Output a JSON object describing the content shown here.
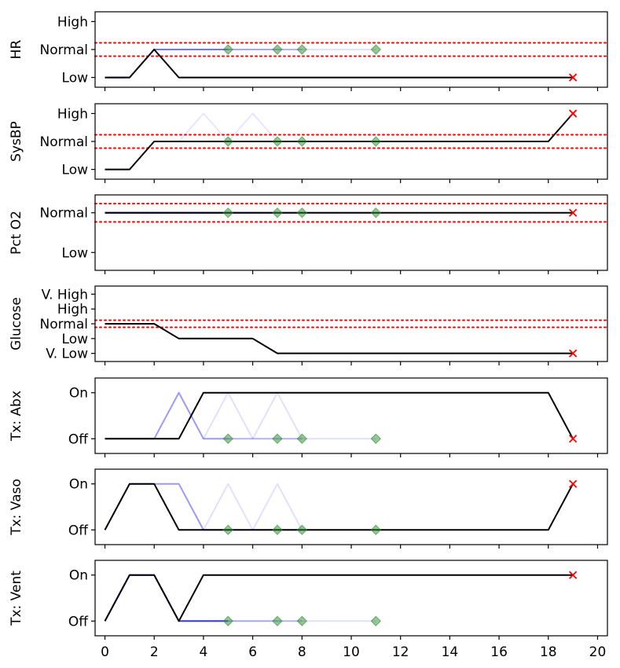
{
  "chart_data": {
    "type": "line",
    "x_ticks": [
      "0",
      "2",
      "4",
      "6",
      "8",
      "10",
      "12",
      "14",
      "16",
      "18",
      "20"
    ],
    "xlim": [
      -0.4,
      20.4
    ],
    "colors": {
      "observed": "#000000",
      "counterfactual": "#0000ff",
      "marker": "#2e8b2e",
      "threshold": "#ff0000",
      "terminal": "#ff0000"
    },
    "panels": [
      {
        "ylabel": "HR",
        "levels": [
          "Low",
          "Normal",
          "High"
        ],
        "ylim": [
          -0.35,
          2.35
        ],
        "thresholds": [
          0.76,
          1.24
        ],
        "observed": {
          "x": [
            0,
            1,
            2,
            3,
            4,
            5,
            6,
            7,
            8,
            9,
            10,
            11,
            12,
            13,
            14,
            15,
            16,
            17,
            18,
            19
          ],
          "y": [
            0,
            0,
            1,
            0,
            0,
            0,
            0,
            0,
            0,
            0,
            0,
            0,
            0,
            0,
            0,
            0,
            0,
            0,
            0,
            0
          ]
        },
        "counterfactuals": [
          {
            "x": [
              0,
              1,
              2,
              3,
              4,
              5
            ],
            "y": [
              0,
              0,
              1,
              1,
              1,
              1
            ],
            "alpha": 0.55
          },
          {
            "x": [
              5,
              6,
              7
            ],
            "y": [
              1,
              1,
              1
            ],
            "alpha": 0.35
          },
          {
            "x": [
              7,
              8
            ],
            "y": [
              1,
              1
            ],
            "alpha": 0.3
          },
          {
            "x": [
              8,
              9,
              10,
              11
            ],
            "y": [
              1,
              1,
              1,
              1
            ],
            "alpha": 0.12
          }
        ],
        "markers": [
          {
            "x": 5,
            "y": 1
          },
          {
            "x": 7,
            "y": 1
          },
          {
            "x": 8,
            "y": 1
          },
          {
            "x": 11,
            "y": 1
          }
        ],
        "end": {
          "x": 19,
          "y": 0
        }
      },
      {
        "ylabel": "SysBP",
        "levels": [
          "Low",
          "Normal",
          "High"
        ],
        "ylim": [
          -0.35,
          2.35
        ],
        "thresholds": [
          0.76,
          1.24
        ],
        "observed": {
          "x": [
            0,
            1,
            2,
            3,
            4,
            5,
            6,
            7,
            8,
            9,
            10,
            11,
            12,
            13,
            14,
            15,
            16,
            17,
            18,
            19
          ],
          "y": [
            0,
            0,
            1,
            1,
            1,
            1,
            1,
            1,
            1,
            1,
            1,
            1,
            1,
            1,
            1,
            1,
            1,
            1,
            1,
            2
          ]
        },
        "counterfactuals": [
          {
            "x": [
              0,
              1,
              2,
              3,
              4,
              5
            ],
            "y": [
              0,
              0,
              1,
              1,
              2,
              1
            ],
            "alpha": 0.1
          },
          {
            "x": [
              5,
              6,
              7
            ],
            "y": [
              1,
              2,
              1
            ],
            "alpha": 0.1
          },
          {
            "x": [
              7,
              8
            ],
            "y": [
              1,
              1
            ],
            "alpha": 0.1
          },
          {
            "x": [
              8,
              9,
              10,
              11
            ],
            "y": [
              1,
              1,
              1,
              1
            ],
            "alpha": 0.1
          }
        ],
        "markers": [
          {
            "x": 5,
            "y": 1
          },
          {
            "x": 7,
            "y": 1
          },
          {
            "x": 8,
            "y": 1
          },
          {
            "x": 11,
            "y": 1
          }
        ],
        "end": {
          "x": 19,
          "y": 2
        }
      },
      {
        "ylabel": "Pct O2",
        "levels": [
          "Low",
          "Normal"
        ],
        "ylim": [
          -0.45,
          1.45
        ],
        "thresholds": [
          0.77,
          1.23
        ],
        "observed": {
          "x": [
            0,
            19
          ],
          "y": [
            1,
            1
          ]
        },
        "counterfactuals": [
          {
            "x": [
              0,
              5
            ],
            "y": [
              1,
              1
            ],
            "alpha": 0.9
          },
          {
            "x": [
              5,
              7
            ],
            "y": [
              1,
              1
            ],
            "alpha": 0.7
          },
          {
            "x": [
              7,
              8
            ],
            "y": [
              1,
              1
            ],
            "alpha": 0.5
          },
          {
            "x": [
              8,
              11
            ],
            "y": [
              1,
              1
            ],
            "alpha": 0.3
          }
        ],
        "markers": [
          {
            "x": 5,
            "y": 1
          },
          {
            "x": 7,
            "y": 1
          },
          {
            "x": 8,
            "y": 1
          },
          {
            "x": 11,
            "y": 1
          }
        ],
        "end": {
          "x": 19,
          "y": 1
        }
      },
      {
        "ylabel": "Glucose",
        "levels": [
          "V. Low",
          "Low",
          "Normal",
          "High",
          "V. High"
        ],
        "ylim": [
          -0.55,
          4.55
        ],
        "thresholds": [
          1.76,
          2.24
        ],
        "observed": {
          "x": [
            0,
            1,
            2,
            3,
            4,
            5,
            6,
            7,
            8,
            9,
            10,
            11,
            12,
            13,
            14,
            15,
            16,
            17,
            18,
            19
          ],
          "y": [
            2,
            2,
            2,
            1,
            1,
            1,
            1,
            0,
            0,
            0,
            0,
            0,
            0,
            0,
            0,
            0,
            0,
            0,
            0,
            0
          ]
        },
        "counterfactuals": [],
        "markers": [],
        "end": {
          "x": 19,
          "y": 0
        }
      },
      {
        "ylabel": "Tx: Abx",
        "levels": [
          "Off",
          "On"
        ],
        "ylim": [
          -0.32,
          1.32
        ],
        "thresholds": [],
        "observed": {
          "x": [
            0,
            1,
            2,
            3,
            4,
            5,
            6,
            7,
            8,
            9,
            10,
            11,
            12,
            13,
            14,
            15,
            16,
            17,
            18,
            19
          ],
          "y": [
            0,
            0,
            0,
            0,
            1,
            1,
            1,
            1,
            1,
            1,
            1,
            1,
            1,
            1,
            1,
            1,
            1,
            1,
            1,
            0
          ]
        },
        "counterfactuals": [
          {
            "x": [
              0,
              1,
              2,
              3,
              4,
              5
            ],
            "y": [
              0,
              0,
              0,
              1,
              0,
              0
            ],
            "alpha": 0.4
          },
          {
            "x": [
              4,
              5,
              6
            ],
            "y": [
              0,
              1,
              0
            ],
            "alpha": 0.12
          },
          {
            "x": [
              5,
              6,
              7
            ],
            "y": [
              0,
              0,
              0
            ],
            "alpha": 0.3
          },
          {
            "x": [
              6,
              7,
              8
            ],
            "y": [
              0,
              1,
              0
            ],
            "alpha": 0.12
          },
          {
            "x": [
              7,
              8
            ],
            "y": [
              0,
              0
            ],
            "alpha": 0.3
          },
          {
            "x": [
              8,
              9,
              10,
              11
            ],
            "y": [
              0,
              0,
              0,
              0
            ],
            "alpha": 0.12
          }
        ],
        "markers": [
          {
            "x": 5,
            "y": 0
          },
          {
            "x": 7,
            "y": 0
          },
          {
            "x": 8,
            "y": 0
          },
          {
            "x": 11,
            "y": 0
          }
        ],
        "end": {
          "x": 19,
          "y": 0
        }
      },
      {
        "ylabel": "Tx: Vaso",
        "levels": [
          "Off",
          "On"
        ],
        "ylim": [
          -0.32,
          1.32
        ],
        "thresholds": [],
        "observed": {
          "x": [
            0,
            1,
            2,
            3,
            4,
            5,
            6,
            7,
            8,
            9,
            10,
            11,
            12,
            13,
            14,
            15,
            16,
            17,
            18,
            19
          ],
          "y": [
            0,
            1,
            1,
            0,
            0,
            0,
            0,
            0,
            0,
            0,
            0,
            0,
            0,
            0,
            0,
            0,
            0,
            0,
            0,
            1
          ]
        },
        "counterfactuals": [
          {
            "x": [
              0,
              1,
              2,
              3,
              4,
              5
            ],
            "y": [
              0,
              1,
              1,
              1,
              0,
              0
            ],
            "alpha": 0.4
          },
          {
            "x": [
              4,
              5,
              6
            ],
            "y": [
              0,
              1,
              0
            ],
            "alpha": 0.12
          },
          {
            "x": [
              5,
              6,
              7
            ],
            "y": [
              0,
              0,
              0
            ],
            "alpha": 0.3
          },
          {
            "x": [
              6,
              7,
              8
            ],
            "y": [
              0,
              1,
              0
            ],
            "alpha": 0.12
          },
          {
            "x": [
              7,
              8
            ],
            "y": [
              0,
              0
            ],
            "alpha": 0.3
          },
          {
            "x": [
              8,
              9,
              10,
              11
            ],
            "y": [
              0,
              0,
              0,
              0
            ],
            "alpha": 0.12
          }
        ],
        "markers": [
          {
            "x": 5,
            "y": 0
          },
          {
            "x": 7,
            "y": 0
          },
          {
            "x": 8,
            "y": 0
          },
          {
            "x": 11,
            "y": 0
          }
        ],
        "end": {
          "x": 19,
          "y": 1
        }
      },
      {
        "ylabel": "Tx: Vent",
        "levels": [
          "Off",
          "On"
        ],
        "ylim": [
          -0.32,
          1.32
        ],
        "thresholds": [],
        "observed": {
          "x": [
            0,
            1,
            2,
            3,
            4,
            5,
            6,
            7,
            8,
            9,
            10,
            11,
            12,
            13,
            14,
            15,
            16,
            17,
            18,
            19
          ],
          "y": [
            0,
            1,
            1,
            0,
            1,
            1,
            1,
            1,
            1,
            1,
            1,
            1,
            1,
            1,
            1,
            1,
            1,
            1,
            1,
            1
          ]
        },
        "counterfactuals": [
          {
            "x": [
              0,
              1,
              2,
              3,
              4,
              5
            ],
            "y": [
              0,
              1,
              1,
              0,
              0,
              0
            ],
            "alpha": 0.8
          },
          {
            "x": [
              5,
              6,
              7
            ],
            "y": [
              0,
              0,
              0
            ],
            "alpha": 0.35
          },
          {
            "x": [
              7,
              8
            ],
            "y": [
              0,
              0
            ],
            "alpha": 0.3
          },
          {
            "x": [
              8,
              9,
              10,
              11
            ],
            "y": [
              0,
              0,
              0,
              0
            ],
            "alpha": 0.12
          }
        ],
        "markers": [
          {
            "x": 5,
            "y": 0
          },
          {
            "x": 7,
            "y": 0
          },
          {
            "x": 8,
            "y": 0
          },
          {
            "x": 11,
            "y": 0
          }
        ],
        "end": {
          "x": 19,
          "y": 1
        }
      }
    ]
  }
}
